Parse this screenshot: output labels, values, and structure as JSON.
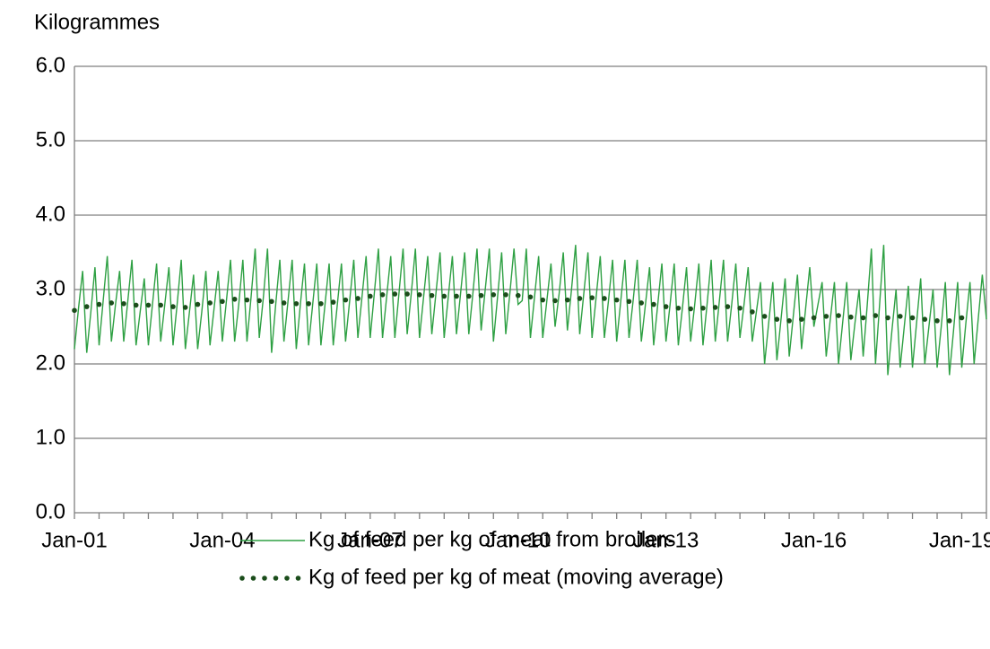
{
  "chart_data": {
    "type": "line",
    "y_label": "Kilogrammes",
    "categories": [
      "Jan-01",
      null,
      null,
      null,
      null,
      null,
      null,
      null,
      null,
      null,
      null,
      null,
      null,
      null,
      null,
      null,
      null,
      null,
      null,
      null,
      null,
      null,
      null,
      null,
      null,
      null,
      null,
      null,
      null,
      null,
      null,
      null,
      null,
      null,
      null,
      null,
      "Jan-04",
      null,
      null,
      null,
      null,
      null,
      null,
      null,
      null,
      null,
      null,
      null,
      null,
      null,
      null,
      null,
      null,
      null,
      null,
      null,
      null,
      null,
      null,
      null,
      null,
      null,
      null,
      null,
      null,
      null,
      null,
      null,
      null,
      null,
      null,
      null,
      "Jan-07",
      null,
      null,
      null,
      null,
      null,
      null,
      null,
      null,
      null,
      null,
      null,
      null,
      null,
      null,
      null,
      null,
      null,
      null,
      null,
      null,
      null,
      null,
      null,
      null,
      null,
      null,
      null,
      null,
      null,
      null,
      null,
      null,
      null,
      null,
      null,
      "Jan-10",
      null,
      null,
      null,
      null,
      null,
      null,
      null,
      null,
      null,
      null,
      null,
      null,
      null,
      null,
      null,
      null,
      null,
      null,
      null,
      null,
      null,
      null,
      null,
      null,
      null,
      null,
      null,
      null,
      null,
      null,
      null,
      null,
      null,
      null,
      null,
      "Jan-13",
      null,
      null,
      null,
      null,
      null,
      null,
      null,
      null,
      null,
      null,
      null,
      null,
      null,
      null,
      null,
      null,
      null,
      null,
      null,
      null,
      null,
      null,
      null,
      null,
      null,
      null,
      null,
      null,
      null,
      null,
      null,
      null,
      null,
      null,
      null,
      "Jan-16",
      null,
      null,
      null,
      null,
      null,
      null,
      null,
      null,
      null,
      null,
      null,
      null,
      null,
      null,
      null,
      null,
      null,
      null,
      null,
      null,
      null,
      null,
      null,
      null,
      null,
      null,
      null,
      null,
      null,
      null,
      null,
      null,
      null,
      null,
      null,
      "Jan-19",
      null,
      null,
      null,
      null,
      null,
      null
    ],
    "series": [
      {
        "name": "Kg of feed per kg of meat from broilers",
        "color": "#2ea043",
        "style": "solid",
        "values": [
          2.2,
          2.75,
          3.25,
          2.15,
          2.7,
          3.3,
          2.25,
          2.85,
          3.45,
          2.3,
          2.8,
          3.25,
          2.3,
          2.85,
          3.4,
          2.25,
          2.7,
          3.15,
          2.25,
          2.8,
          3.35,
          2.3,
          2.8,
          3.3,
          2.25,
          2.8,
          3.4,
          2.2,
          2.7,
          3.2,
          2.2,
          2.7,
          3.25,
          2.25,
          2.75,
          3.25,
          2.3,
          2.85,
          3.4,
          2.3,
          2.8,
          3.4,
          2.3,
          2.9,
          3.55,
          2.35,
          2.9,
          3.55,
          2.15,
          2.8,
          3.4,
          2.3,
          2.85,
          3.4,
          2.2,
          2.8,
          3.35,
          2.25,
          2.8,
          3.35,
          2.25,
          2.8,
          3.35,
          2.25,
          2.8,
          3.35,
          2.3,
          2.85,
          3.4,
          2.35,
          2.9,
          3.45,
          2.35,
          2.95,
          3.55,
          2.35,
          2.9,
          3.45,
          2.35,
          2.95,
          3.55,
          2.4,
          2.95,
          3.55,
          2.35,
          2.9,
          3.45,
          2.4,
          2.95,
          3.5,
          2.35,
          2.9,
          3.45,
          2.4,
          2.95,
          3.5,
          2.4,
          2.95,
          3.55,
          2.45,
          3.0,
          3.55,
          2.3,
          2.9,
          3.5,
          2.4,
          2.95,
          3.55,
          2.8,
          2.85,
          3.55,
          2.35,
          2.9,
          3.45,
          2.35,
          2.85,
          3.35,
          2.5,
          2.95,
          3.5,
          2.45,
          3.0,
          3.6,
          2.4,
          2.95,
          3.5,
          2.35,
          2.9,
          3.45,
          2.35,
          2.85,
          3.4,
          2.3,
          2.85,
          3.4,
          2.35,
          2.85,
          3.4,
          2.3,
          2.8,
          3.3,
          2.25,
          2.8,
          3.35,
          2.3,
          2.8,
          3.35,
          2.25,
          2.75,
          3.3,
          2.3,
          2.8,
          3.35,
          2.25,
          2.8,
          3.4,
          2.3,
          2.85,
          3.4,
          2.3,
          2.8,
          3.35,
          2.35,
          2.8,
          3.3,
          2.3,
          2.7,
          3.1,
          2.0,
          2.55,
          3.1,
          2.05,
          2.6,
          3.15,
          2.1,
          2.65,
          3.2,
          2.2,
          2.75,
          3.3,
          2.5,
          2.8,
          3.1,
          2.1,
          2.6,
          3.1,
          2.0,
          2.55,
          3.1,
          2.05,
          2.55,
          3.0,
          2.1,
          2.8,
          3.55,
          2.0,
          2.8,
          3.6,
          1.85,
          2.45,
          3.0,
          1.95,
          2.5,
          3.05,
          1.95,
          2.55,
          3.15,
          2.0,
          2.5,
          3.0,
          1.95,
          2.5,
          3.1,
          1.85,
          2.45,
          3.1,
          1.95,
          2.55,
          3.1,
          2.0,
          2.6,
          3.2,
          2.6
        ]
      },
      {
        "name": "Kg of feed per kg of meat (moving average)",
        "color": "#1b4d1b",
        "style": "dotted",
        "values": [
          2.72,
          null,
          null,
          2.77,
          null,
          null,
          2.8,
          null,
          null,
          2.82,
          null,
          null,
          2.81,
          null,
          null,
          2.79,
          null,
          null,
          2.79,
          null,
          null,
          2.79,
          null,
          null,
          2.77,
          null,
          null,
          2.76,
          null,
          null,
          2.8,
          null,
          null,
          2.82,
          null,
          null,
          2.84,
          null,
          null,
          2.87,
          null,
          null,
          2.86,
          null,
          null,
          2.85,
          null,
          null,
          2.84,
          null,
          null,
          2.82,
          null,
          null,
          2.81,
          null,
          null,
          2.81,
          null,
          null,
          2.81,
          null,
          null,
          2.83,
          null,
          null,
          2.86,
          null,
          null,
          2.88,
          null,
          null,
          2.91,
          null,
          null,
          2.93,
          null,
          null,
          2.94,
          null,
          null,
          2.94,
          null,
          null,
          2.93,
          null,
          null,
          2.92,
          null,
          null,
          2.91,
          null,
          null,
          2.91,
          null,
          null,
          2.91,
          null,
          null,
          2.92,
          null,
          null,
          2.93,
          null,
          null,
          2.93,
          null,
          null,
          2.92,
          null,
          null,
          2.9,
          null,
          null,
          2.86,
          null,
          null,
          2.85,
          null,
          null,
          2.86,
          null,
          null,
          2.88,
          null,
          null,
          2.89,
          null,
          null,
          2.88,
          null,
          null,
          2.86,
          null,
          null,
          2.84,
          null,
          null,
          2.82,
          null,
          null,
          2.8,
          null,
          null,
          2.77,
          null,
          null,
          2.75,
          null,
          null,
          2.74,
          null,
          null,
          2.75,
          null,
          null,
          2.76,
          null,
          null,
          2.77,
          null,
          null,
          2.75,
          null,
          null,
          2.7,
          null,
          null,
          2.64,
          null,
          null,
          2.6,
          null,
          null,
          2.58,
          null,
          null,
          2.6,
          null,
          null,
          2.62,
          null,
          null,
          2.64,
          null,
          null,
          2.65,
          null,
          null,
          2.63,
          null,
          null,
          2.62,
          null,
          null,
          2.65,
          null,
          null,
          2.62,
          null,
          null,
          2.64,
          null,
          null,
          2.62,
          null,
          null,
          2.6,
          null,
          null,
          2.58,
          null,
          null,
          2.58,
          null,
          null,
          2.62,
          null,
          null,
          null,
          null,
          null,
          null
        ]
      }
    ],
    "ylim": [
      0,
      6
    ],
    "yticks": [
      {
        "value": 0,
        "label": "0.0"
      },
      {
        "value": 1,
        "label": "1.0"
      },
      {
        "value": 2,
        "label": "2.0"
      },
      {
        "value": 3,
        "label": "3.0"
      },
      {
        "value": 4,
        "label": "4.0"
      },
      {
        "value": 5,
        "label": "5.0"
      },
      {
        "value": 6,
        "label": "6.0"
      }
    ],
    "grid": true,
    "legend": "bottom"
  }
}
